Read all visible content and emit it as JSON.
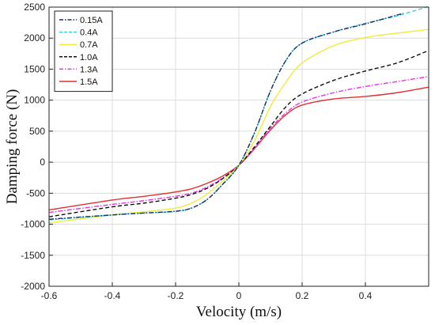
{
  "chart_data": {
    "type": "line",
    "title": "",
    "xlabel": "Velocity  (m/s)",
    "ylabel": "Damping force (N)",
    "xlim": [
      -0.6,
      0.6
    ],
    "ylim": [
      -2000,
      2500
    ],
    "xticks": [
      -0.6,
      -0.4,
      -0.2,
      0,
      0.2,
      0.4
    ],
    "yticks": [
      -2000,
      -1500,
      -1000,
      -500,
      0,
      500,
      1000,
      1500,
      2000,
      2500
    ],
    "grid": true,
    "legend_position": "top-left",
    "series": [
      {
        "name": "0.15A",
        "color": "#1f2a6b",
        "dash": "dashdot",
        "x": [
          -0.6,
          -0.4,
          -0.3,
          -0.2,
          -0.15,
          -0.1,
          -0.05,
          0,
          0.05,
          0.1,
          0.15,
          0.2,
          0.3,
          0.4,
          0.52
        ],
        "y": [
          -920,
          -850,
          -820,
          -790,
          -740,
          -600,
          -350,
          -50,
          480,
          1150,
          1650,
          1920,
          2100,
          2230,
          2400
        ]
      },
      {
        "name": "0.4A",
        "color": "#2ed6e6",
        "dash": "dashed",
        "x": [
          -0.6,
          -0.4,
          -0.3,
          -0.2,
          -0.15,
          -0.1,
          -0.05,
          0,
          0.05,
          0.1,
          0.15,
          0.2,
          0.3,
          0.4,
          0.5,
          0.6
        ],
        "y": [
          -930,
          -850,
          -820,
          -795,
          -740,
          -600,
          -350,
          -50,
          480,
          1150,
          1650,
          1920,
          2100,
          2240,
          2360,
          2510
        ]
      },
      {
        "name": "0.7A",
        "color": "#eded3a",
        "dash": "solid",
        "x": [
          -0.6,
          -0.4,
          -0.3,
          -0.2,
          -0.15,
          -0.1,
          -0.05,
          0,
          0.05,
          0.1,
          0.15,
          0.2,
          0.3,
          0.4,
          0.5,
          0.6
        ],
        "y": [
          -980,
          -850,
          -800,
          -740,
          -660,
          -510,
          -300,
          -50,
          350,
          900,
          1300,
          1600,
          1880,
          2010,
          2080,
          2140
        ]
      },
      {
        "name": "1.0A",
        "color": "#111111",
        "dash": "dashed",
        "x": [
          -0.6,
          -0.4,
          -0.3,
          -0.2,
          -0.15,
          -0.1,
          -0.05,
          0,
          0.05,
          0.1,
          0.15,
          0.2,
          0.3,
          0.4,
          0.5,
          0.6
        ],
        "y": [
          -880,
          -720,
          -660,
          -580,
          -520,
          -420,
          -260,
          -50,
          250,
          580,
          900,
          1100,
          1320,
          1470,
          1600,
          1800
        ]
      },
      {
        "name": "1.3A",
        "color": "#e833e8",
        "dash": "dashdot",
        "x": [
          -0.6,
          -0.4,
          -0.3,
          -0.2,
          -0.15,
          -0.1,
          -0.05,
          0,
          0.05,
          0.1,
          0.15,
          0.2,
          0.3,
          0.4,
          0.5,
          0.6
        ],
        "y": [
          -810,
          -680,
          -620,
          -550,
          -500,
          -400,
          -250,
          -50,
          230,
          550,
          800,
          970,
          1120,
          1220,
          1300,
          1380
        ]
      },
      {
        "name": "1.5A",
        "color": "#e03030",
        "dash": "solid",
        "x": [
          -0.6,
          -0.4,
          -0.3,
          -0.2,
          -0.15,
          -0.1,
          -0.05,
          0,
          0.05,
          0.1,
          0.15,
          0.2,
          0.3,
          0.4,
          0.5,
          0.6
        ],
        "y": [
          -770,
          -610,
          -550,
          -480,
          -430,
          -340,
          -220,
          -50,
          220,
          520,
          770,
          920,
          1020,
          1060,
          1120,
          1210
        ]
      }
    ]
  }
}
